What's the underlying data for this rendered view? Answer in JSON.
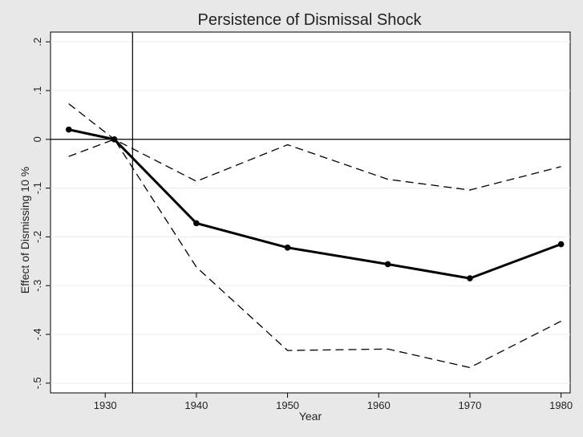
{
  "chart_data": {
    "type": "line",
    "title": "Persistence of Dismissal Shock",
    "xlabel": "Year",
    "ylabel": "Effect of Dismissing 10 %",
    "xlim": [
      1924,
      1981
    ],
    "ylim": [
      -0.52,
      0.22
    ],
    "xticks": [
      1930,
      1940,
      1950,
      1960,
      1970,
      1980
    ],
    "xtick_labels": [
      "1930",
      "1940",
      "1950",
      "1960",
      "1970",
      "1980"
    ],
    "yticks": [
      0.2,
      0.1,
      0,
      -0.1,
      -0.2,
      -0.3,
      -0.4,
      -0.5
    ],
    "ytick_labels": [
      ".2",
      ".1",
      "0",
      "-.1",
      "-.2",
      "-.3",
      "-.4",
      "-.5"
    ],
    "grid": true,
    "reference_lines": {
      "y": 0,
      "x": 1933
    },
    "series": [
      {
        "style": "solid-markers",
        "x": [
          1926,
          1931,
          1940,
          1950,
          1961,
          1970,
          1980
        ],
        "y": [
          0.02,
          0.0,
          -0.172,
          -0.222,
          -0.256,
          -0.285,
          -0.215
        ]
      },
      {
        "style": "dashed",
        "x": [
          1926,
          1931,
          1940,
          1950,
          1961,
          1970,
          1980
        ],
        "y": [
          0.073,
          0.0,
          -0.086,
          -0.011,
          -0.082,
          -0.104,
          -0.056
        ]
      },
      {
        "style": "dashed",
        "x": [
          1926,
          1931,
          1940,
          1950,
          1961,
          1970,
          1980
        ],
        "y": [
          -0.035,
          0.0,
          -0.262,
          -0.433,
          -0.43,
          -0.468,
          -0.373
        ]
      }
    ],
    "colors": {
      "frame_bg": "#e8e8e8",
      "plot_bg": "#ffffff",
      "line": "#000000",
      "grid": "#e6ecef"
    }
  }
}
